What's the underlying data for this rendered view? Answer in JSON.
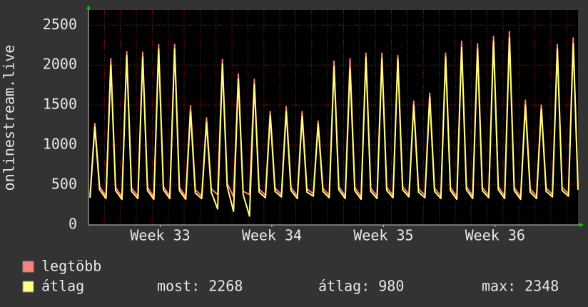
{
  "chart_data": {
    "type": "line",
    "y_label": "onlinestream.live",
    "x": [
      0.1,
      0.4,
      0.7,
      1.1,
      1.4,
      1.7,
      2.1,
      2.4,
      2.7,
      3.1,
      3.4,
      3.7,
      4.1,
      4.4,
      4.7,
      5.1,
      5.4,
      5.7,
      6.1,
      6.4,
      6.7,
      7.1,
      7.4,
      7.7,
      8.1,
      8.4,
      8.7,
      9.1,
      9.4,
      9.7,
      10.1,
      10.4,
      10.7,
      11.1,
      11.4,
      11.7,
      12.1,
      12.4,
      12.7,
      13.1,
      13.4,
      13.7,
      14.1,
      14.4,
      14.7,
      15.1,
      15.4,
      15.7,
      16.1,
      16.4,
      16.7,
      17.1,
      17.4,
      17.7,
      18.1,
      18.4,
      18.7,
      19.1,
      19.4,
      19.7,
      20.1,
      20.4,
      20.7,
      21.1,
      21.4,
      21.7,
      22.1,
      22.4,
      22.7,
      23.1,
      23.4,
      23.7,
      24.1,
      24.4,
      24.7,
      25.1,
      25.4,
      25.7,
      26.1,
      26.4,
      26.7,
      27.1,
      27.4,
      27.7,
      28.1,
      28.4,
      28.7,
      29.1,
      29.4,
      29.7,
      30.1,
      30.4,
      30.7
    ],
    "series": [
      {
        "name": "legtöbb",
        "color": "#ff7f7f",
        "values": [
          370,
          1270,
          480,
          360,
          2080,
          470,
          350,
          2170,
          460,
          360,
          2160,
          470,
          350,
          2260,
          480,
          360,
          2260,
          470,
          350,
          1490,
          440,
          360,
          1340,
          450,
          380,
          2070,
          520,
          350,
          1890,
          420,
          380,
          1820,
          450,
          370,
          1420,
          460,
          380,
          1480,
          470,
          360,
          1420,
          450,
          390,
          1300,
          460,
          370,
          2050,
          480,
          360,
          2080,
          470,
          350,
          2150,
          460,
          360,
          2150,
          470,
          370,
          2120,
          480,
          380,
          1550,
          450,
          370,
          1650,
          460,
          360,
          2150,
          470,
          350,
          2300,
          480,
          360,
          2270,
          470,
          370,
          2360,
          480,
          360,
          2420,
          470,
          350,
          1560,
          450,
          360,
          1500,
          460,
          380,
          2260,
          470,
          390,
          2340,
          480
        ]
      },
      {
        "name": "átlag",
        "color": "#ffff80",
        "values": [
          340,
          1230,
          440,
          330,
          2000,
          430,
          320,
          2120,
          420,
          330,
          2100,
          430,
          320,
          2200,
          440,
          330,
          2200,
          430,
          320,
          1420,
          400,
          330,
          1280,
          410,
          200,
          2010,
          480,
          170,
          1830,
          380,
          110,
          1760,
          410,
          340,
          1370,
          420,
          350,
          1420,
          430,
          330,
          1360,
          410,
          360,
          1260,
          420,
          340,
          1980,
          440,
          330,
          1950,
          430,
          320,
          2100,
          420,
          330,
          2080,
          430,
          340,
          2080,
          440,
          350,
          1500,
          410,
          340,
          1600,
          420,
          330,
          2100,
          430,
          320,
          2220,
          440,
          330,
          2200,
          430,
          340,
          2300,
          440,
          330,
          2340,
          430,
          320,
          1500,
          410,
          330,
          1450,
          420,
          350,
          2200,
          430,
          360,
          2268,
          440
        ]
      }
    ],
    "xlim": [
      0,
      30.7
    ],
    "xticks": [
      {
        "value": 4.5,
        "label": "Week 33"
      },
      {
        "value": 11.5,
        "label": "Week 34"
      },
      {
        "value": 18.5,
        "label": "Week 35"
      },
      {
        "value": 25.5,
        "label": "Week 36"
      }
    ],
    "xgrid": [
      1,
      2,
      3,
      4,
      5,
      6,
      7,
      8,
      9,
      10,
      11,
      12,
      13,
      14,
      15,
      16,
      17,
      18,
      19,
      20,
      21,
      22,
      23,
      24,
      25,
      26,
      27,
      28,
      29,
      30
    ],
    "ylim": [
      0,
      2690
    ],
    "yticks": [
      0,
      500,
      1000,
      1500,
      2000,
      2500
    ],
    "grid": true,
    "stats": [
      {
        "label": "most:",
        "value": 2268
      },
      {
        "label": "átlag:",
        "value": 980
      },
      {
        "label": "max:",
        "value": 2348
      }
    ]
  }
}
